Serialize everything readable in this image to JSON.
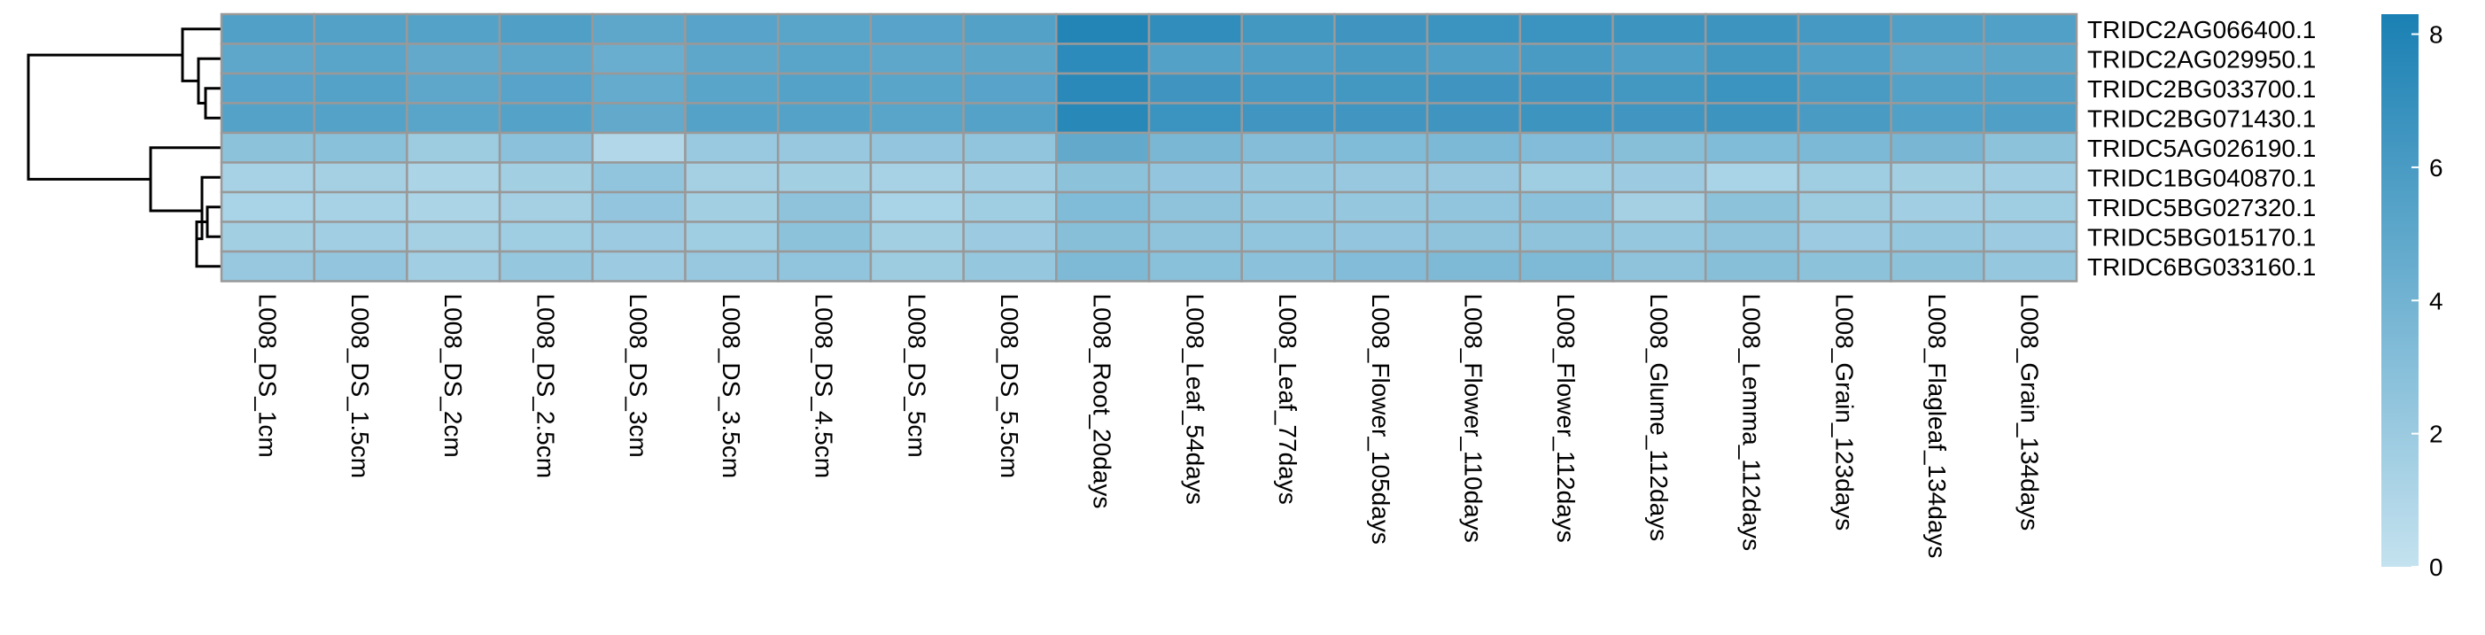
{
  "chart_data": {
    "type": "heatmap",
    "title": "",
    "xlabel": "",
    "ylabel": "",
    "colormap": {
      "low": "#c4e2ef",
      "high": "#1a80b3",
      "range": [
        0,
        8.3
      ]
    },
    "colorbar": {
      "ticks": [
        0,
        2,
        4,
        6,
        8
      ],
      "placement": "right"
    },
    "dendrogram": {
      "side": "left"
    },
    "rows": [
      "TRIDC2AG066400.1",
      "TRIDC2AG029950.1",
      "TRIDC2BG033700.1",
      "TRIDC2BG071430.1",
      "TRIDC5AG026190.1",
      "TRIDC1BG040870.1",
      "TRIDC5BG027320.1",
      "TRIDC5BG015170.1",
      "TRIDC6BG033160.1"
    ],
    "columns": [
      "L008_DS_1cm",
      "L008_DS_1.5cm",
      "L008_DS_2cm",
      "L008_DS_2.5cm",
      "L008_DS_3cm",
      "L008_DS_3.5cm",
      "L008_DS_4.5cm",
      "L008_DS_5cm",
      "L008_DS_5.5cm",
      "L008_Root_20days",
      "L008_Leaf_54days",
      "L008_Leaf_77days",
      "L008_Flower_105days",
      "L008_Flower_110days",
      "L008_Flower_112days",
      "L008_Glume_112days",
      "L008_Lemma_112days",
      "L008_Grain_123days",
      "L008_Flagleaf_134days",
      "L008_Grain_134days"
    ],
    "values": [
      [
        5.6,
        5.5,
        5.4,
        5.7,
        5.0,
        5.3,
        5.2,
        5.3,
        5.5,
        7.9,
        7.2,
        6.3,
        6.5,
        6.7,
        6.7,
        6.6,
        6.6,
        6.2,
        5.7,
        5.6
      ],
      [
        5.0,
        5.2,
        4.8,
        5.0,
        4.4,
        5.0,
        5.2,
        5.0,
        5.1,
        7.4,
        5.5,
        5.7,
        6.0,
        5.7,
        6.0,
        5.7,
        6.3,
        5.6,
        5.0,
        5.1
      ],
      [
        5.3,
        5.4,
        5.0,
        5.3,
        4.7,
        5.2,
        5.4,
        5.2,
        5.3,
        7.5,
        6.5,
        6.2,
        6.3,
        6.5,
        6.5,
        6.3,
        6.7,
        6.0,
        5.5,
        5.5
      ],
      [
        5.4,
        5.4,
        5.2,
        5.4,
        4.8,
        5.4,
        5.4,
        5.2,
        5.4,
        7.6,
        6.7,
        6.4,
        6.4,
        6.5,
        6.6,
        6.4,
        6.6,
        6.0,
        5.6,
        5.7
      ],
      [
        2.7,
        2.9,
        1.9,
        2.8,
        0.9,
        2.1,
        2.2,
        2.4,
        2.5,
        4.8,
        3.6,
        3.1,
        3.3,
        3.5,
        3.2,
        3.0,
        3.3,
        3.5,
        3.7,
        2.7
      ],
      [
        1.4,
        1.5,
        1.2,
        1.6,
        2.5,
        1.5,
        1.6,
        1.4,
        1.7,
        2.7,
        2.4,
        2.3,
        2.2,
        2.2,
        1.8,
        2.0,
        1.3,
        1.8,
        1.6,
        1.7
      ],
      [
        1.3,
        1.4,
        1.2,
        1.5,
        2.4,
        1.6,
        2.6,
        1.3,
        1.8,
        3.3,
        2.6,
        2.3,
        2.3,
        2.5,
        2.8,
        1.5,
        2.7,
        1.9,
        1.7,
        1.8
      ],
      [
        1.6,
        1.7,
        1.5,
        1.8,
        2.0,
        1.8,
        2.7,
        1.6,
        2.0,
        3.0,
        2.6,
        2.5,
        2.4,
        2.6,
        2.6,
        2.3,
        2.6,
        2.0,
        2.3,
        2.0
      ],
      [
        2.2,
        2.4,
        1.7,
        2.3,
        2.0,
        2.2,
        2.5,
        1.9,
        2.3,
        3.4,
        2.9,
        2.8,
        3.2,
        3.4,
        3.4,
        2.6,
        3.0,
        2.7,
        2.7,
        2.3
      ]
    ]
  }
}
